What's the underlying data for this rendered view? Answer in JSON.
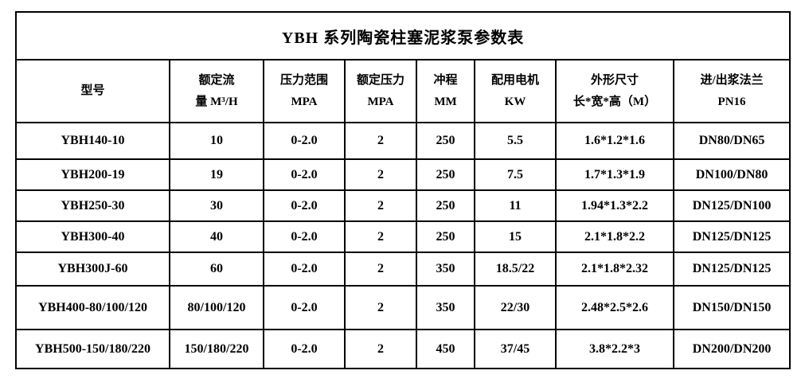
{
  "page": {
    "background_color": "#ffffff",
    "border_color": "#000000",
    "text_color": "#000000"
  },
  "table": {
    "title": "YBH 系列陶瓷柱塞泥浆泵参数表",
    "columns": [
      {
        "line1": "型号",
        "line2": ""
      },
      {
        "line1": "额定流",
        "line2": "量 M³/H"
      },
      {
        "line1": "压力范围",
        "line2": "MPA"
      },
      {
        "line1": "额定压力",
        "line2": "MPA"
      },
      {
        "line1": "冲程",
        "line2": "MM"
      },
      {
        "line1": "配用电机",
        "line2": "KW"
      },
      {
        "line1": "外形尺寸",
        "line2": "长*宽*高（M）"
      },
      {
        "line1": "进/出浆法兰",
        "line2": "PN16"
      }
    ],
    "rows": [
      [
        "YBH140-10",
        "10",
        "0-2.0",
        "2",
        "250",
        "5.5",
        "1.6*1.2*1.6",
        "DN80/DN65"
      ],
      [
        "YBH200-19",
        "19",
        "0-2.0",
        "2",
        "250",
        "7.5",
        "1.7*1.3*1.9",
        "DN100/DN80"
      ],
      [
        "YBH250-30",
        "30",
        "0-2.0",
        "2",
        "250",
        "11",
        "1.94*1.3*2.2",
        "DN125/DN100"
      ],
      [
        "YBH300-40",
        "40",
        "0-2.0",
        "2",
        "250",
        "15",
        "2.1*1.8*2.2",
        "DN125/DN125"
      ],
      [
        "YBH300J-60",
        "60",
        "0-2.0",
        "2",
        "350",
        "18.5/22",
        "2.1*1.8*2.32",
        "DN125/DN125"
      ],
      [
        "YBH400-80/100/120",
        "80/100/120",
        "0-2.0",
        "2",
        "350",
        "22/30",
        "2.48*2.5*2.6",
        "DN150/DN150"
      ],
      [
        "YBH500-150/180/220",
        "150/180/220",
        "0-2.0",
        "2",
        "450",
        "37/45",
        "3.8*2.2*3",
        "DN200/DN200"
      ]
    ]
  }
}
